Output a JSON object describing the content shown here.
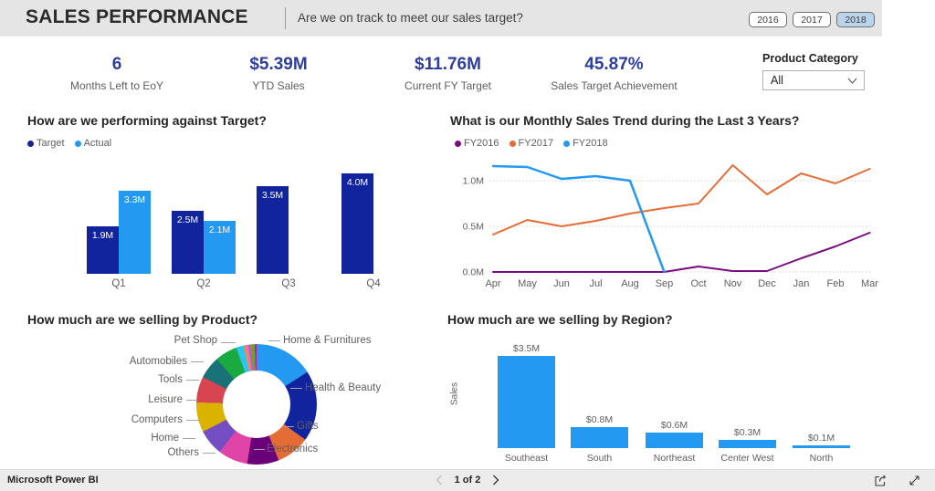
{
  "header": {
    "title": "SALES PERFORMANCE",
    "subtitle": "Are we on track to meet our sales target?",
    "year_buttons": [
      {
        "label": "2016",
        "selected": false
      },
      {
        "label": "2017",
        "selected": false
      },
      {
        "label": "2018",
        "selected": true
      }
    ]
  },
  "kpis": [
    {
      "value": "6",
      "label": "Months Left to EoY"
    },
    {
      "value": "$5.39M",
      "label": "YTD Sales"
    },
    {
      "value": "$11.76M",
      "label": "Current FY Target"
    },
    {
      "value": "45.87%",
      "label": "Sales Target Achievement"
    }
  ],
  "filter": {
    "label": "Product Category",
    "value": "All"
  },
  "colors": {
    "kpi_value": "#2D3E9F",
    "target_navy": "#12239E",
    "actual_blue": "#2499F2",
    "axis_text": "#605E5C",
    "selected_year_bg": "#B9D4EC"
  },
  "icons": {
    "dropdown_chevron": "chevron-down",
    "prev_page": "chevron-left",
    "next_page": "chevron-right",
    "share": "share-arrow-box",
    "fullscreen": "diagonal-expand-arrows"
  },
  "chart_data": [
    {
      "id": "target-vs-actual",
      "type": "bar",
      "title": "How are we performing against Target?",
      "categories": [
        "Q1",
        "Q2",
        "Q3",
        "Q4"
      ],
      "series": [
        {
          "name": "Target",
          "color": "#12239E",
          "values": [
            1.9,
            2.5,
            3.5,
            4.0
          ],
          "labels": [
            "1.9M",
            "2.5M",
            "3.5M",
            "4.0M"
          ]
        },
        {
          "name": "Actual",
          "color": "#2499F2",
          "values": [
            3.3,
            2.1,
            null,
            null
          ],
          "labels": [
            "3.3M",
            "2.1M",
            null,
            null
          ]
        }
      ],
      "unit": "M",
      "ylim": [
        0,
        4.55
      ],
      "data_labels": true,
      "gridlines": false,
      "legend_position": "top-left"
    },
    {
      "id": "monthly-sales-trend",
      "type": "line",
      "title": "What is our Monthly Sales Trend during the Last 3 Years?",
      "x": [
        "Apr",
        "May",
        "Jun",
        "Jul",
        "Aug",
        "Sep",
        "Oct",
        "Nov",
        "Dec",
        "Jan",
        "Feb",
        "Mar"
      ],
      "series": [
        {
          "name": "FY2016",
          "color": "#7A0C82",
          "values": [
            0,
            0,
            0,
            0,
            0,
            0,
            0.06,
            0.01,
            0.01,
            0.15,
            0.28,
            0.43
          ]
        },
        {
          "name": "FY2017",
          "color": "#E66C37",
          "values": [
            0.41,
            0.57,
            0.5,
            0.56,
            0.64,
            0.7,
            0.75,
            1.17,
            0.85,
            1.08,
            0.97,
            1.13
          ]
        },
        {
          "name": "FY2018",
          "color": "#2499F2",
          "values": [
            1.16,
            1.15,
            1.02,
            1.05,
            1.0,
            0.0
          ]
        }
      ],
      "yticks": [
        {
          "v": 0,
          "label": "0.0M"
        },
        {
          "v": 0.5,
          "label": "0.5M"
        },
        {
          "v": 1.0,
          "label": "1.0M"
        }
      ],
      "ylim": [
        0,
        1.28
      ],
      "gridlines": true,
      "legend_position": "top-left"
    },
    {
      "id": "sales-by-product",
      "type": "pie",
      "title": "How much are we selling by Product?",
      "donut": true,
      "slices": [
        {
          "label": "Home & Furnitures",
          "value": 16,
          "color": "#2499F2"
        },
        {
          "label": "Health & Beauty",
          "value": 19,
          "color": "#12239E"
        },
        {
          "label": "Gifts",
          "value": 9,
          "color": "#E66C37"
        },
        {
          "label": "Electronics",
          "value": 8.5,
          "color": "#6B007B"
        },
        {
          "label": "Others",
          "value": 8,
          "color": "#E044A7"
        },
        {
          "label": "Home",
          "value": 7,
          "color": "#744EC2"
        },
        {
          "label": "Computers",
          "value": 8,
          "color": "#D9B300"
        },
        {
          "label": "Leisure",
          "value": 7,
          "color": "#D64550"
        },
        {
          "label": "Tools",
          "value": 6,
          "color": "#197278"
        },
        {
          "label": "Automobiles",
          "value": 6,
          "color": "#1AAB40"
        },
        {
          "label": "Pet Shop",
          "value": 2,
          "color": "#2BC4F3"
        },
        {
          "label": "",
          "value": 0.7,
          "color": "#F18F49"
        },
        {
          "label": "",
          "value": 0.6,
          "color": "#F06EBB"
        },
        {
          "label": "",
          "value": 0.6,
          "color": "#9B6BD3"
        },
        {
          "label": "",
          "value": 0.6,
          "color": "#A09203"
        },
        {
          "label": "",
          "value": 0.5,
          "color": "#3BB44A"
        },
        {
          "label": "",
          "value": 0.5,
          "color": "#C9199D"
        }
      ]
    },
    {
      "id": "sales-by-region",
      "type": "bar",
      "title": "How much are we selling by Region?",
      "categories": [
        "Southeast",
        "South",
        "Northeast",
        "Center West",
        "North"
      ],
      "values": [
        3.5,
        0.8,
        0.6,
        0.3,
        0.1
      ],
      "labels": [
        "$3.5M",
        "$0.8M",
        "$0.6M",
        "$0.3M",
        "$0.1M"
      ],
      "ylabel": "Sales",
      "color": "#2499F2",
      "ylim": [
        0,
        3.9
      ],
      "data_labels": true,
      "gridlines": false
    }
  ],
  "footer": {
    "brand": "Microsoft Power BI",
    "page_label": "1 of 2"
  }
}
